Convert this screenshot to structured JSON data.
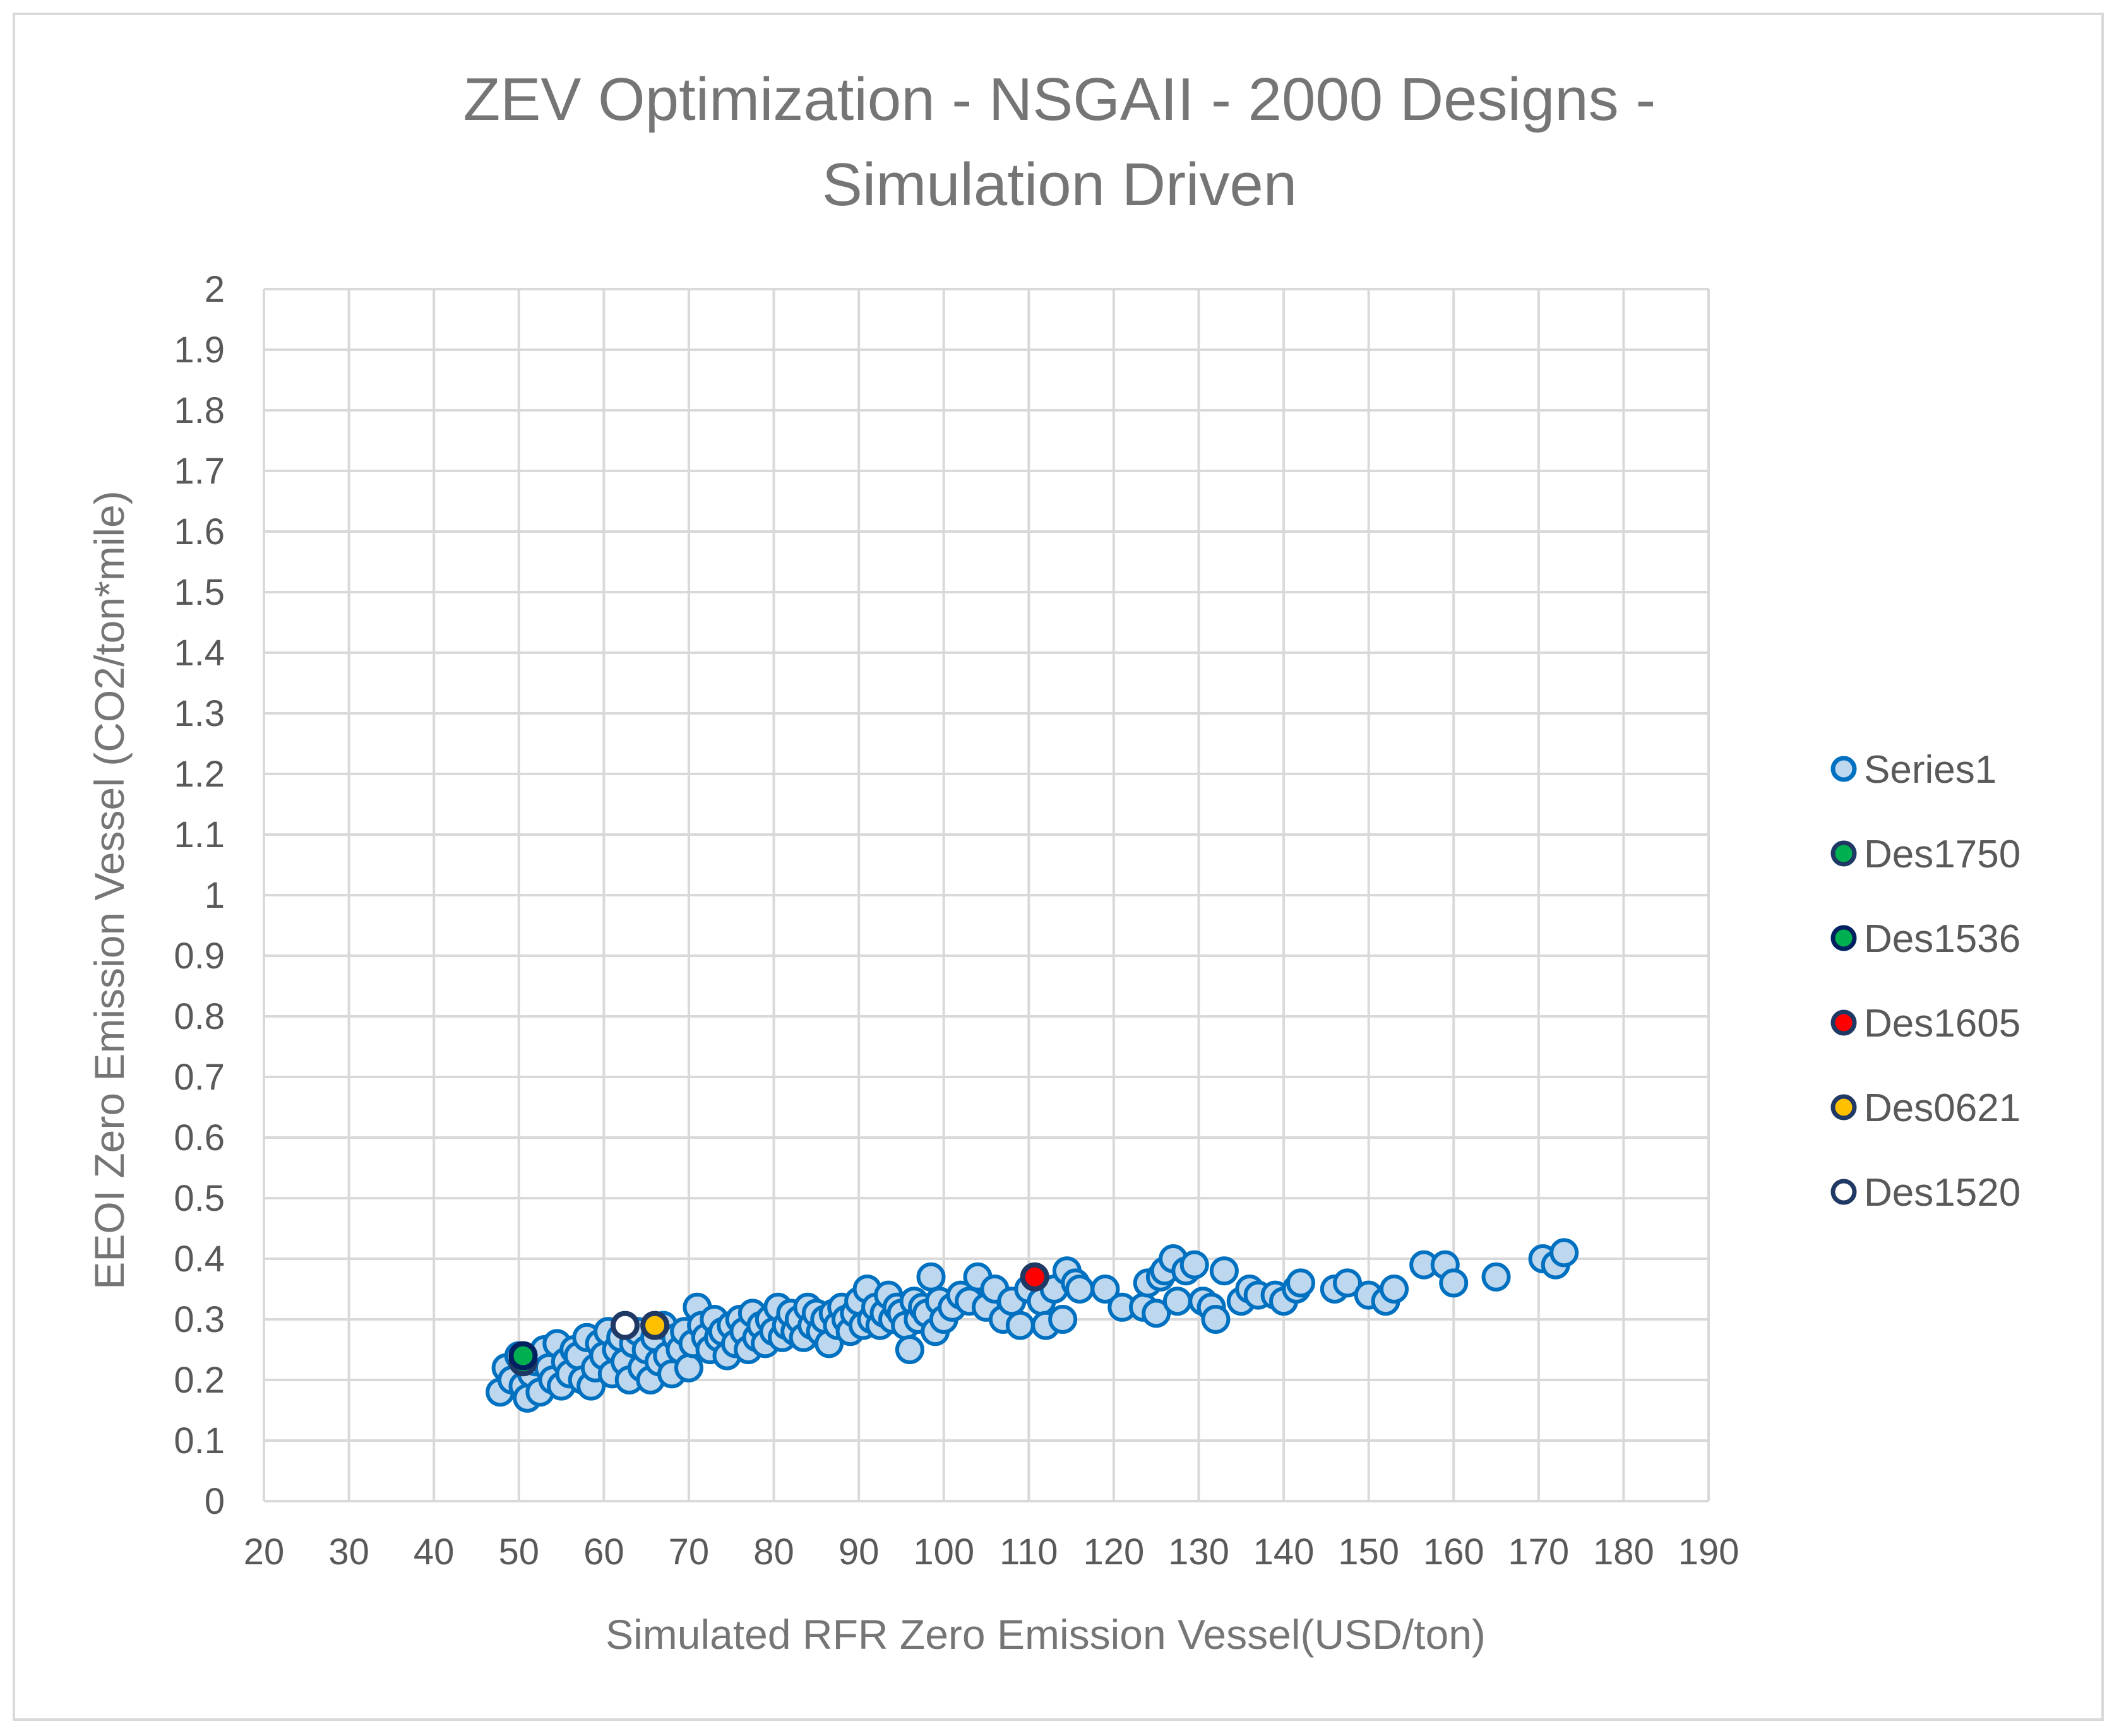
{
  "chart_data": {
    "type": "scatter",
    "title_lines": [
      "ZEV Optimization - NSGAII - 2000 Designs -",
      "Simulation Driven"
    ],
    "xlabel": "Simulated RFR Zero Emission Vessel(USD/ton)",
    "ylabel": "EEOI Zero Emission Vessel (CO2/ton*mile)",
    "xlim": [
      20,
      190
    ],
    "ylim": [
      0,
      2
    ],
    "x_ticks": [
      "20",
      "30",
      "40",
      "50",
      "60",
      "70",
      "80",
      "90",
      "100",
      "110",
      "120",
      "130",
      "140",
      "150",
      "160",
      "170",
      "180",
      "190"
    ],
    "y_ticks": [
      "0",
      "0.1",
      "0.2",
      "0.3",
      "0.4",
      "0.5",
      "0.6",
      "0.7",
      "0.8",
      "0.9",
      "1",
      "1.1",
      "1.2",
      "1.3",
      "1.4",
      "1.5",
      "1.6",
      "1.7",
      "1.8",
      "1.9",
      "2"
    ],
    "grid": true,
    "legend_position": "right",
    "series": [
      {
        "name": "Series1",
        "fill": "#bdd7ee",
        "stroke": "#0070c0",
        "points": [
          [
            47.8,
            0.18
          ],
          [
            48.5,
            0.22
          ],
          [
            49.2,
            0.2
          ],
          [
            50.0,
            0.24
          ],
          [
            50.5,
            0.19
          ],
          [
            51.0,
            0.17
          ],
          [
            51.5,
            0.21
          ],
          [
            52.0,
            0.23
          ],
          [
            52.5,
            0.18
          ],
          [
            53.0,
            0.25
          ],
          [
            53.5,
            0.22
          ],
          [
            54.0,
            0.2
          ],
          [
            54.5,
            0.26
          ],
          [
            55.0,
            0.19
          ],
          [
            55.5,
            0.23
          ],
          [
            56.0,
            0.21
          ],
          [
            56.5,
            0.25
          ],
          [
            57.0,
            0.24
          ],
          [
            57.5,
            0.2
          ],
          [
            58.0,
            0.27
          ],
          [
            58.5,
            0.19
          ],
          [
            59.0,
            0.22
          ],
          [
            59.5,
            0.26
          ],
          [
            60.0,
            0.24
          ],
          [
            60.5,
            0.28
          ],
          [
            61.0,
            0.21
          ],
          [
            61.5,
            0.25
          ],
          [
            62.0,
            0.27
          ],
          [
            62.5,
            0.23
          ],
          [
            63.0,
            0.2
          ],
          [
            63.5,
            0.26
          ],
          [
            64.0,
            0.28
          ],
          [
            64.5,
            0.22
          ],
          [
            65.0,
            0.25
          ],
          [
            65.5,
            0.2
          ],
          [
            66.0,
            0.27
          ],
          [
            66.5,
            0.23
          ],
          [
            67.0,
            0.29
          ],
          [
            67.5,
            0.24
          ],
          [
            68.0,
            0.21
          ],
          [
            68.5,
            0.27
          ],
          [
            69.0,
            0.25
          ],
          [
            69.5,
            0.28
          ],
          [
            70.0,
            0.22
          ],
          [
            70.5,
            0.26
          ],
          [
            71.0,
            0.32
          ],
          [
            71.5,
            0.29
          ],
          [
            72.0,
            0.27
          ],
          [
            72.5,
            0.25
          ],
          [
            73.0,
            0.3
          ],
          [
            73.5,
            0.27
          ],
          [
            74.0,
            0.28
          ],
          [
            74.5,
            0.24
          ],
          [
            75.0,
            0.29
          ],
          [
            75.5,
            0.26
          ],
          [
            76.0,
            0.3
          ],
          [
            76.5,
            0.28
          ],
          [
            77.0,
            0.25
          ],
          [
            77.5,
            0.31
          ],
          [
            78.0,
            0.27
          ],
          [
            78.5,
            0.29
          ],
          [
            79.0,
            0.26
          ],
          [
            79.5,
            0.3
          ],
          [
            80.0,
            0.28
          ],
          [
            80.5,
            0.32
          ],
          [
            81.0,
            0.27
          ],
          [
            81.5,
            0.29
          ],
          [
            82.0,
            0.31
          ],
          [
            82.5,
            0.28
          ],
          [
            83.0,
            0.3
          ],
          [
            83.5,
            0.27
          ],
          [
            84.0,
            0.32
          ],
          [
            84.5,
            0.29
          ],
          [
            85.0,
            0.31
          ],
          [
            85.5,
            0.28
          ],
          [
            86.0,
            0.3
          ],
          [
            86.5,
            0.26
          ],
          [
            87.0,
            0.31
          ],
          [
            87.5,
            0.29
          ],
          [
            88.0,
            0.32
          ],
          [
            88.5,
            0.3
          ],
          [
            89.0,
            0.28
          ],
          [
            89.5,
            0.31
          ],
          [
            90.0,
            0.33
          ],
          [
            90.5,
            0.29
          ],
          [
            91.0,
            0.35
          ],
          [
            91.5,
            0.3
          ],
          [
            92.0,
            0.32
          ],
          [
            92.5,
            0.29
          ],
          [
            93.0,
            0.31
          ],
          [
            93.5,
            0.34
          ],
          [
            94.0,
            0.3
          ],
          [
            94.5,
            0.32
          ],
          [
            95.0,
            0.31
          ],
          [
            95.5,
            0.29
          ],
          [
            96.0,
            0.25
          ],
          [
            96.5,
            0.33
          ],
          [
            97.0,
            0.3
          ],
          [
            97.5,
            0.32
          ],
          [
            98.0,
            0.31
          ],
          [
            98.5,
            0.37
          ],
          [
            99.0,
            0.28
          ],
          [
            99.5,
            0.33
          ],
          [
            100.0,
            0.3
          ],
          [
            101.0,
            0.32
          ],
          [
            102.0,
            0.34
          ],
          [
            103.0,
            0.33
          ],
          [
            104.0,
            0.37
          ],
          [
            105.0,
            0.32
          ],
          [
            106.0,
            0.35
          ],
          [
            107.0,
            0.3
          ],
          [
            108.0,
            0.33
          ],
          [
            109.0,
            0.29
          ],
          [
            110.0,
            0.35
          ],
          [
            111.5,
            0.33
          ],
          [
            112.0,
            0.29
          ],
          [
            113.0,
            0.35
          ],
          [
            114.0,
            0.3
          ],
          [
            114.5,
            0.38
          ],
          [
            115.5,
            0.36
          ],
          [
            116.0,
            0.35
          ],
          [
            119.0,
            0.35
          ],
          [
            121.0,
            0.32
          ],
          [
            123.5,
            0.32
          ],
          [
            124.0,
            0.36
          ],
          [
            125.0,
            0.31
          ],
          [
            125.5,
            0.37
          ],
          [
            126.0,
            0.38
          ],
          [
            127.0,
            0.4
          ],
          [
            127.5,
            0.33
          ],
          [
            128.5,
            0.38
          ],
          [
            129.5,
            0.39
          ],
          [
            130.5,
            0.33
          ],
          [
            131.5,
            0.32
          ],
          [
            132.0,
            0.3
          ],
          [
            133.0,
            0.38
          ],
          [
            135.0,
            0.33
          ],
          [
            136.0,
            0.35
          ],
          [
            137.0,
            0.34
          ],
          [
            139.0,
            0.34
          ],
          [
            140.0,
            0.33
          ],
          [
            141.5,
            0.35
          ],
          [
            142.0,
            0.36
          ],
          [
            146.0,
            0.35
          ],
          [
            147.5,
            0.36
          ],
          [
            150.0,
            0.34
          ],
          [
            152.0,
            0.33
          ],
          [
            153.0,
            0.35
          ],
          [
            156.5,
            0.39
          ],
          [
            159.0,
            0.39
          ],
          [
            160.0,
            0.36
          ],
          [
            165.0,
            0.37
          ],
          [
            170.5,
            0.4
          ],
          [
            172.0,
            0.39
          ],
          [
            173.0,
            0.41
          ]
        ]
      },
      {
        "name": "Des1750",
        "fill": "#00b050",
        "stroke": "#1f3864",
        "points": [
          [
            50.5,
            0.23
          ]
        ]
      },
      {
        "name": "Des1536",
        "fill": "#00b050",
        "stroke": "#002060",
        "points": [
          [
            50.5,
            0.24
          ]
        ]
      },
      {
        "name": "Des1605",
        "fill": "#ff0000",
        "stroke": "#1f3864",
        "points": [
          [
            110.7,
            0.37
          ]
        ]
      },
      {
        "name": "Des0621",
        "fill": "#ffc000",
        "stroke": "#1f3864",
        "points": [
          [
            66.0,
            0.29
          ]
        ]
      },
      {
        "name": "Des1520",
        "fill": "#ffffff",
        "stroke": "#1f3864",
        "points": [
          [
            62.5,
            0.29
          ]
        ]
      }
    ]
  }
}
